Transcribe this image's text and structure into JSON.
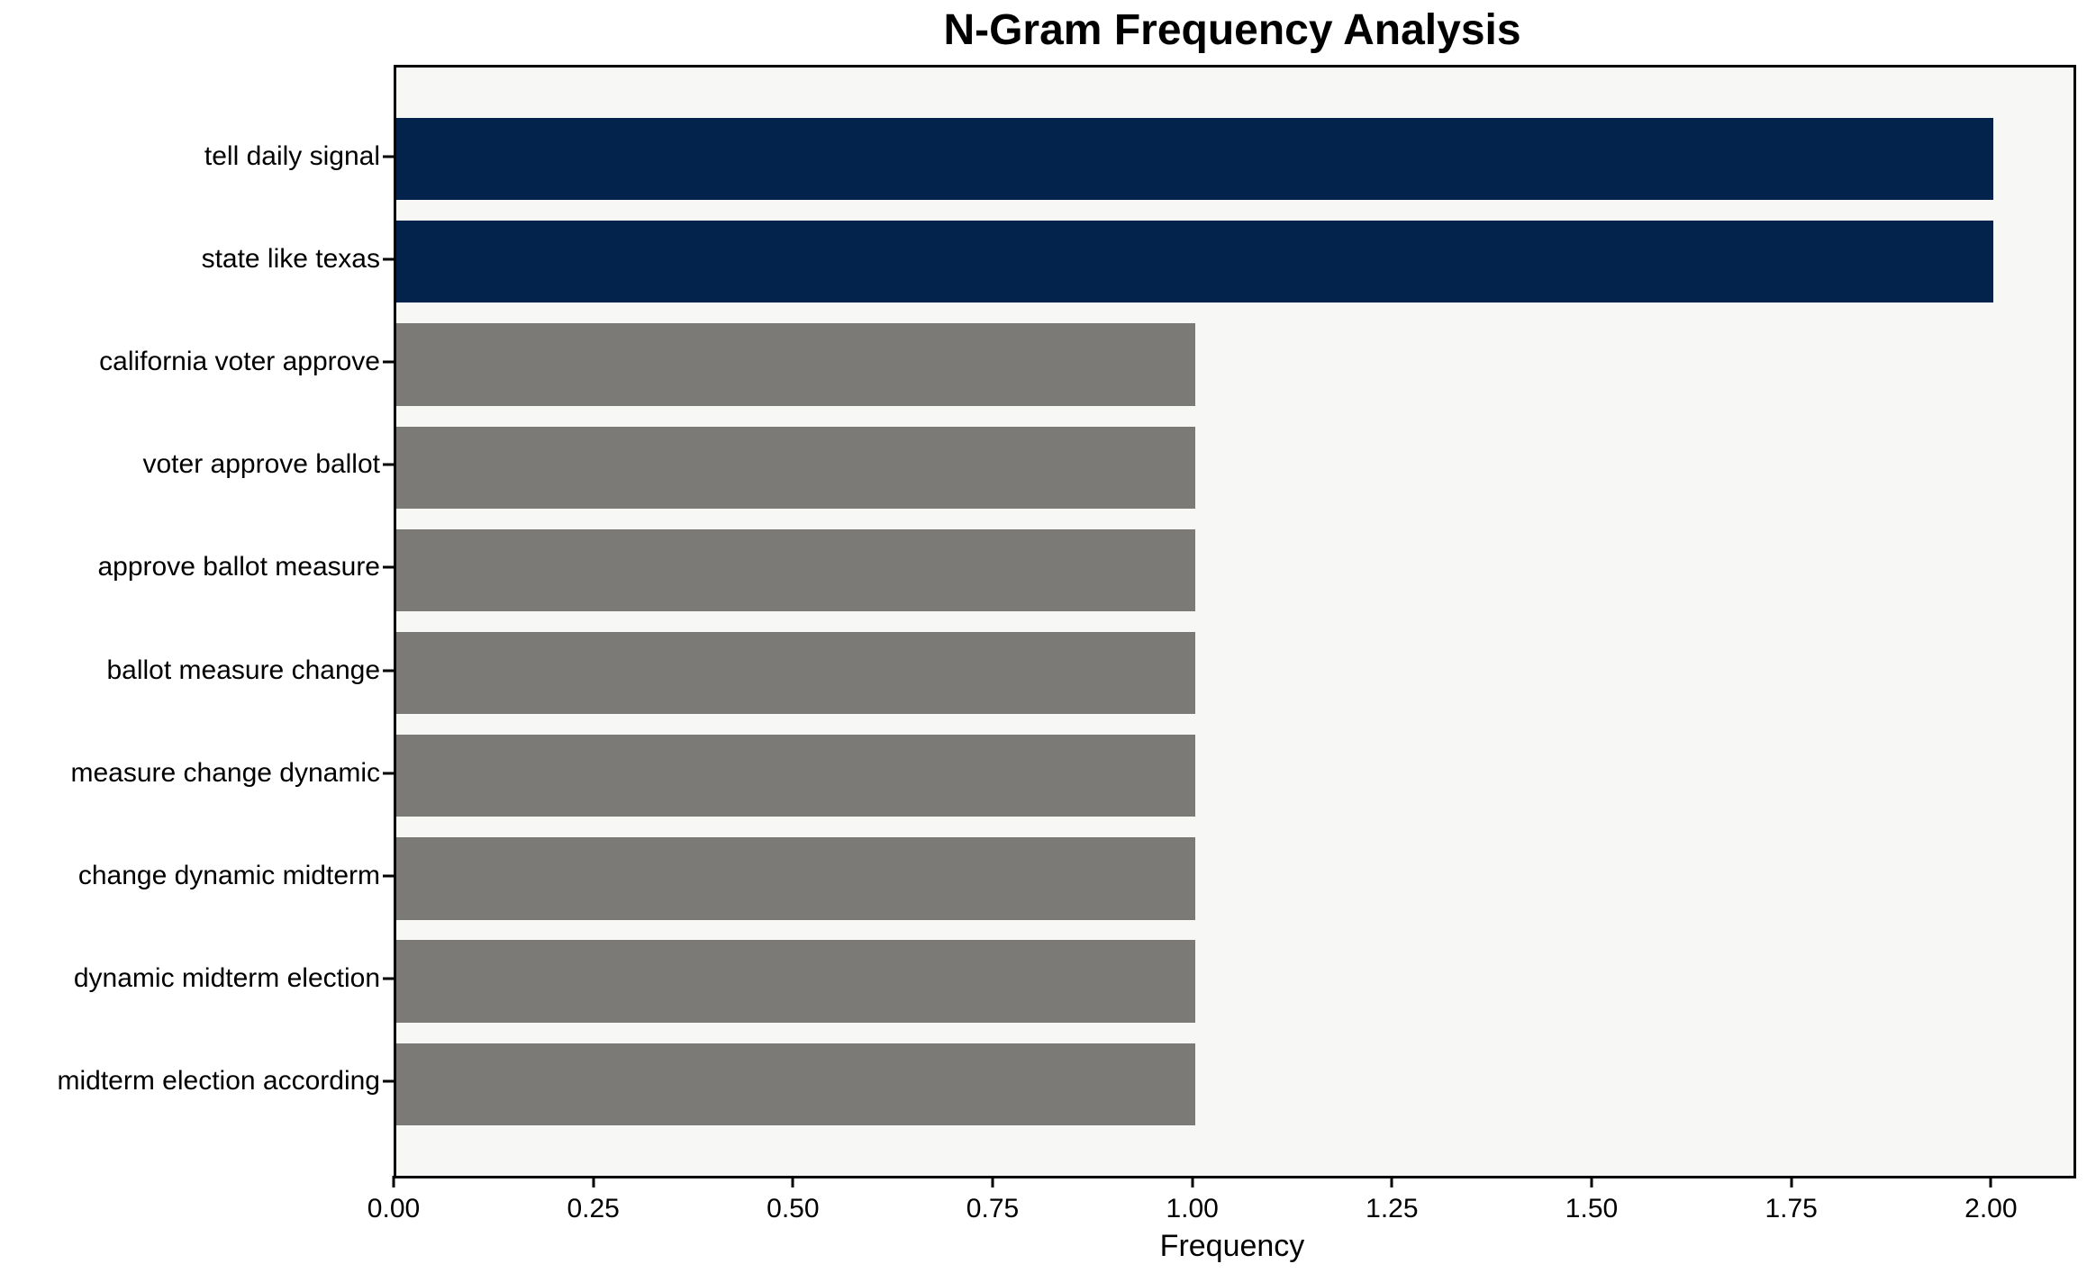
{
  "title": "N-Gram Frequency Analysis",
  "chart_data": {
    "type": "bar",
    "orientation": "horizontal",
    "title": "N-Gram Frequency Analysis",
    "xlabel": "Frequency",
    "ylabel": "",
    "categories": [
      "tell daily signal",
      "state like texas",
      "california voter approve",
      "voter approve ballot",
      "approve ballot measure",
      "ballot measure change",
      "measure change dynamic",
      "change dynamic midterm",
      "dynamic midterm election",
      "midterm election according"
    ],
    "values": [
      2,
      2,
      1,
      1,
      1,
      1,
      1,
      1,
      1,
      1
    ],
    "bar_colors": [
      "#03234d",
      "#03234d",
      "#7b7a77",
      "#7b7a77",
      "#7b7a77",
      "#7b7a77",
      "#7b7a77",
      "#7b7a77",
      "#7b7a77",
      "#7b7a77"
    ],
    "xlim": [
      0,
      2.1
    ],
    "x_tick_values": [
      0,
      0.25,
      0.5,
      0.75,
      1.0,
      1.25,
      1.5,
      1.75,
      2.0
    ],
    "x_tick_labels": [
      "0.00",
      "0.25",
      "0.50",
      "0.75",
      "1.00",
      "1.25",
      "1.50",
      "1.75",
      "2.00"
    ],
    "grid": false,
    "legend": null,
    "colors": {
      "highlight_bar": "#03234d",
      "default_bar": "#7b7a77",
      "plot_background": "#f7f7f6",
      "figure_background": "#ffffff",
      "spine": "#000000",
      "text": "#000000"
    }
  }
}
